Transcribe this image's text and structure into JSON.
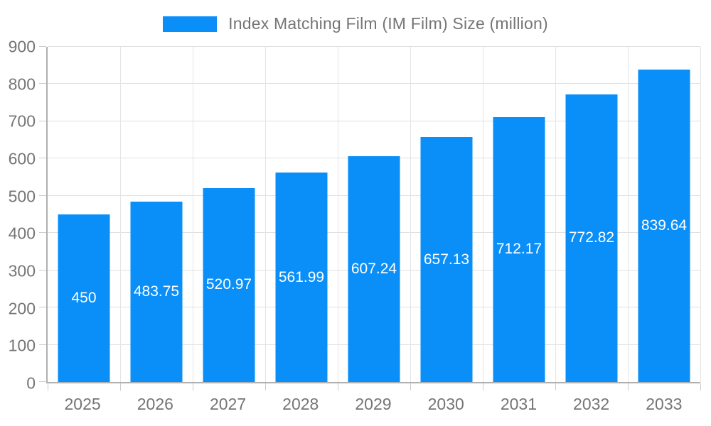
{
  "chart_data": {
    "type": "bar",
    "title": "Index Matching Film (IM Film) Size (million)",
    "categories": [
      "2025",
      "2026",
      "2027",
      "2028",
      "2029",
      "2030",
      "2031",
      "2032",
      "2033"
    ],
    "series": [
      {
        "name": "Index Matching Film (IM Film) Size (million)",
        "values": [
          450,
          483.75,
          520.97,
          561.99,
          607.24,
          657.13,
          712.17,
          772.82,
          839.64
        ]
      }
    ],
    "value_labels": [
      "450",
      "483.75",
      "520.97",
      "561.99",
      "607.24",
      "657.13",
      "712.17",
      "772.82",
      "839.64"
    ],
    "xlabel": "",
    "ylabel": "",
    "ylim": [
      0,
      900
    ],
    "y_ticks": [
      0,
      100,
      200,
      300,
      400,
      500,
      600,
      700,
      800,
      900
    ],
    "grid": true,
    "legend_position": "top"
  },
  "legend": {
    "label": "Index Matching Film (IM Film) Size (million)"
  },
  "colors": {
    "bar": "#0a8ff9",
    "bar_value_text": "#ffffff",
    "axis_text": "#757575",
    "grid_line": "#e0e0e0",
    "axis_line": "#b0b0b0",
    "tick_line": "#cccccc",
    "background": "#ffffff"
  }
}
